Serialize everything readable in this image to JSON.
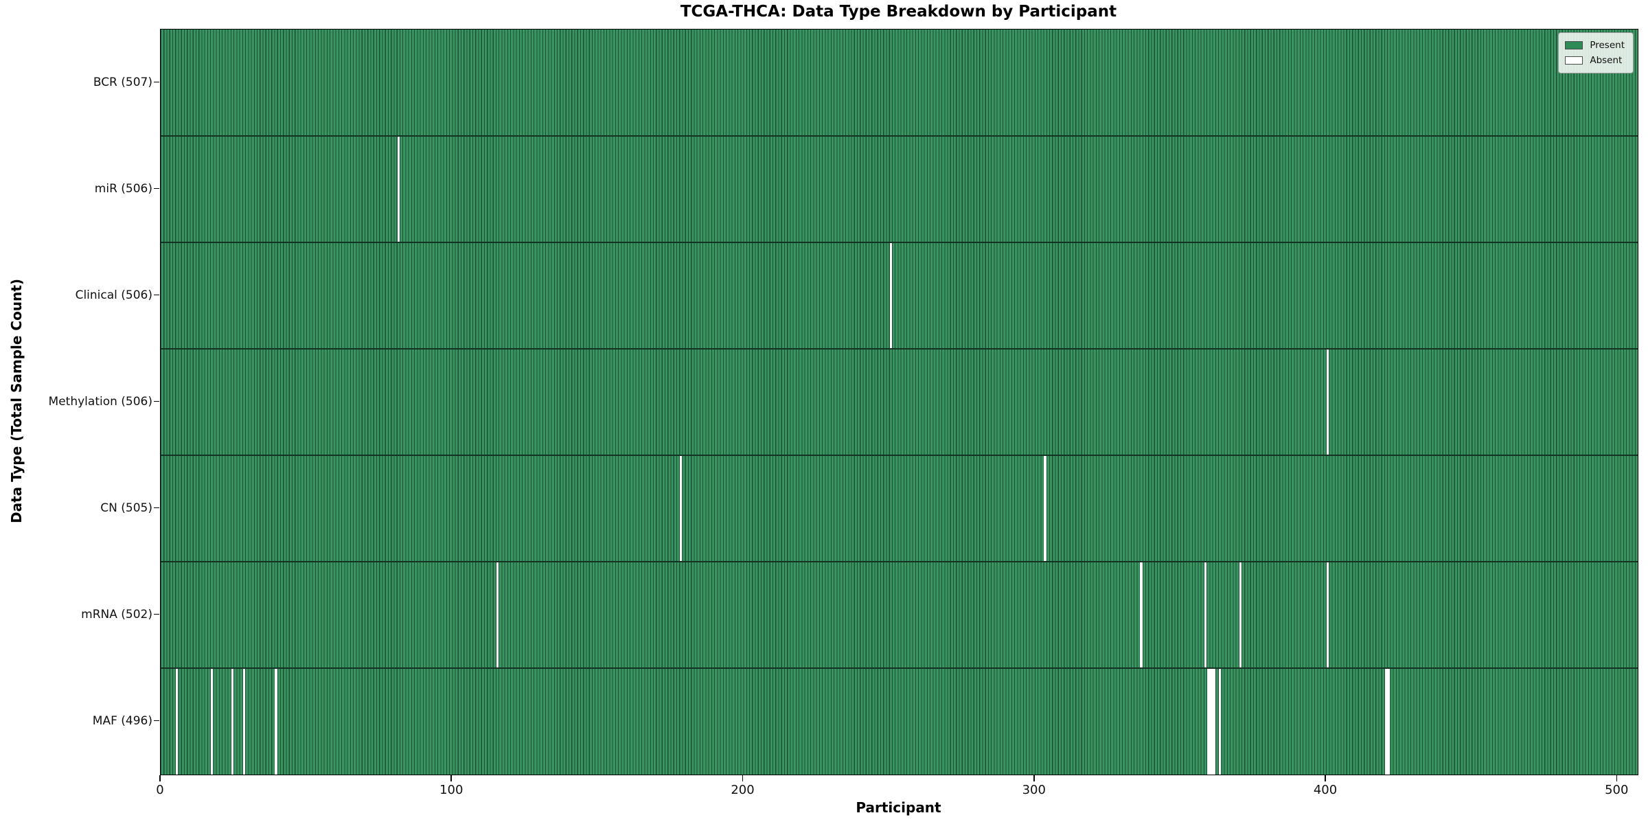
{
  "chart_data": {
    "type": "heatmap",
    "title": "TCGA-THCA: Data Type Breakdown by Participant",
    "xlabel": "Participant",
    "ylabel": "Data Type (Total Sample Count)",
    "x_ticks": [
      0,
      100,
      200,
      300,
      400,
      500
    ],
    "xlim": [
      0,
      507
    ],
    "n_participants": 507,
    "grid": false,
    "legend": {
      "position": "upper-right",
      "entries": [
        {
          "label": "Present",
          "color": "#2e8b57"
        },
        {
          "label": "Absent",
          "color": "#ffffff"
        }
      ]
    },
    "colors": {
      "present_fill": "#3a9462",
      "bar_edge": "#1b4f33",
      "row_separator": "#143222"
    },
    "rows": [
      {
        "label": "BCR (507)",
        "data_type": "BCR",
        "total": 507,
        "absent_participants": []
      },
      {
        "label": "miR (506)",
        "data_type": "miR",
        "total": 506,
        "absent_participants": [
          81
        ]
      },
      {
        "label": "Clinical (506)",
        "data_type": "Clinical",
        "total": 506,
        "absent_participants": [
          250
        ]
      },
      {
        "label": "Methylation (506)",
        "data_type": "Methylation",
        "total": 506,
        "absent_participants": [
          400
        ]
      },
      {
        "label": "CN (505)",
        "data_type": "CN",
        "total": 505,
        "absent_participants": [
          178,
          303
        ]
      },
      {
        "label": "mRNA (502)",
        "data_type": "mRNA",
        "total": 502,
        "absent_participants": [
          115,
          336,
          358,
          370,
          400
        ]
      },
      {
        "label": "MAF (496)",
        "data_type": "MAF",
        "total": 496,
        "absent_participants": [
          5,
          17,
          24,
          28,
          39,
          359,
          360,
          361,
          363,
          420,
          421
        ]
      }
    ]
  }
}
